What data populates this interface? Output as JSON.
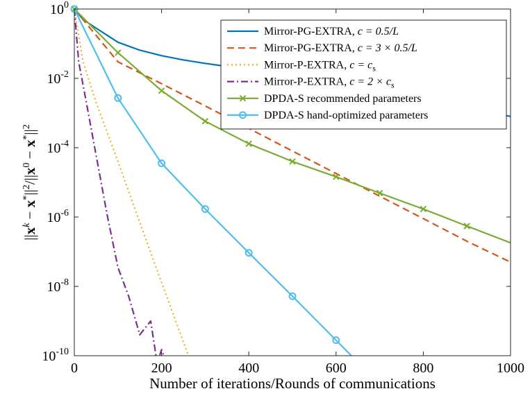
{
  "chart_data": {
    "type": "line",
    "title": "",
    "xlabel": "Number of iterations/Rounds of communications",
    "ylabel": "||x^k − x*||^2 / ||x^0 − x*||^2",
    "xlim": [
      0,
      1000
    ],
    "ylim": [
      1e-10,
      1
    ],
    "yscale": "log",
    "grid": false,
    "legend_position": "top-right",
    "x_ticks": [
      0,
      200,
      400,
      600,
      800,
      1000
    ],
    "y_ticks": [
      {
        "base": "10",
        "exp": "-10",
        "value": 1e-10
      },
      {
        "base": "10",
        "exp": "-8",
        "value": 1e-08
      },
      {
        "base": "10",
        "exp": "-6",
        "value": 1e-06
      },
      {
        "base": "10",
        "exp": "-4",
        "value": 0.0001
      },
      {
        "base": "10",
        "exp": "-2",
        "value": 0.01
      },
      {
        "base": "10",
        "exp": "0",
        "value": 1
      }
    ],
    "series": [
      {
        "name": "Mirror-PG-EXTRA, c = 0.5/L",
        "color": "#0072BD",
        "dash": "solid",
        "marker": "none",
        "x": [
          0,
          20,
          50,
          100,
          150,
          200,
          250,
          300,
          350,
          400,
          500,
          600,
          700,
          800,
          900,
          1000
        ],
        "y": [
          1,
          0.5,
          0.28,
          0.11,
          0.065,
          0.045,
          0.034,
          0.027,
          0.022,
          0.019,
          0.0135,
          0.0085,
          0.0045,
          0.0024,
          0.0013,
          0.0008
        ]
      },
      {
        "name": "Mirror-PG-EXTRA, c = 3 × 0.5/L",
        "color": "#D95319",
        "dash": "dashed",
        "marker": "none",
        "x": [
          0,
          100,
          200,
          300,
          400,
          500,
          600,
          700,
          800,
          900,
          1000
        ],
        "y": [
          1,
          0.03,
          0.007,
          0.0016,
          0.00036,
          8e-05,
          1.8e-05,
          4e-06,
          9e-07,
          2e-07,
          5e-08
        ]
      },
      {
        "name": "Mirror-P-EXTRA, c = c_s",
        "color": "#EDB120",
        "dash": "dotted",
        "marker": "none",
        "x": [
          0,
          20,
          50,
          100,
          150,
          200,
          250,
          300,
          332
        ],
        "y": [
          1,
          0.03,
          0.002,
          4e-05,
          7e-07,
          1.3e-08,
          2.5e-10,
          5e-12,
          1e-10
        ]
      },
      {
        "name": "Mirror-P-EXTRA, c = 2 × c_s",
        "color": "#7E2F8E",
        "dash": "dashdot",
        "marker": "none",
        "x": [
          0,
          10,
          25,
          50,
          75,
          100,
          125,
          150,
          175,
          190,
          200,
          205
        ],
        "y": [
          1,
          0.03,
          0.003,
          6e-05,
          1.2e-06,
          3.5e-08,
          5e-09,
          4e-10,
          1e-09,
          6e-11,
          1.5e-10,
          1e-10
        ]
      },
      {
        "name": "DPDA-S recommended parameters",
        "color": "#77AC30",
        "dash": "solid",
        "marker": "x",
        "x": [
          0,
          100,
          200,
          300,
          400,
          500,
          600,
          700,
          800,
          900,
          1000
        ],
        "y": [
          1,
          0.055,
          0.0044,
          0.00058,
          0.00013,
          4e-05,
          1.45e-05,
          4.9e-06,
          1.7e-06,
          5.5e-07,
          1.8e-07
        ]
      },
      {
        "name": "DPDA-S hand-optimized parameters",
        "color": "#4DBEEE",
        "dash": "solid",
        "marker": "o",
        "x": [
          0,
          100,
          200,
          300,
          400,
          500,
          600,
          635
        ],
        "y": [
          1,
          0.0027,
          3.55e-05,
          1.7e-06,
          9.3e-08,
          5.2e-09,
          2.8e-10,
          1e-10
        ]
      }
    ]
  },
  "legend": [
    {
      "text": "Mirror-PG-EXTRA, ",
      "math": "c = 0.5/L"
    },
    {
      "text": "Mirror-PG-EXTRA, ",
      "math": "c = 3 × 0.5/L"
    },
    {
      "text": "Mirror-P-EXTRA, ",
      "math": "c = c",
      "sub": "s"
    },
    {
      "text": "Mirror-P-EXTRA, ",
      "math": "c = 2 × c",
      "sub": "s"
    },
    {
      "text": "DPDA-S recommended parameters",
      "math": ""
    },
    {
      "text": "DPDA-S hand-optimized parameters",
      "math": ""
    }
  ]
}
